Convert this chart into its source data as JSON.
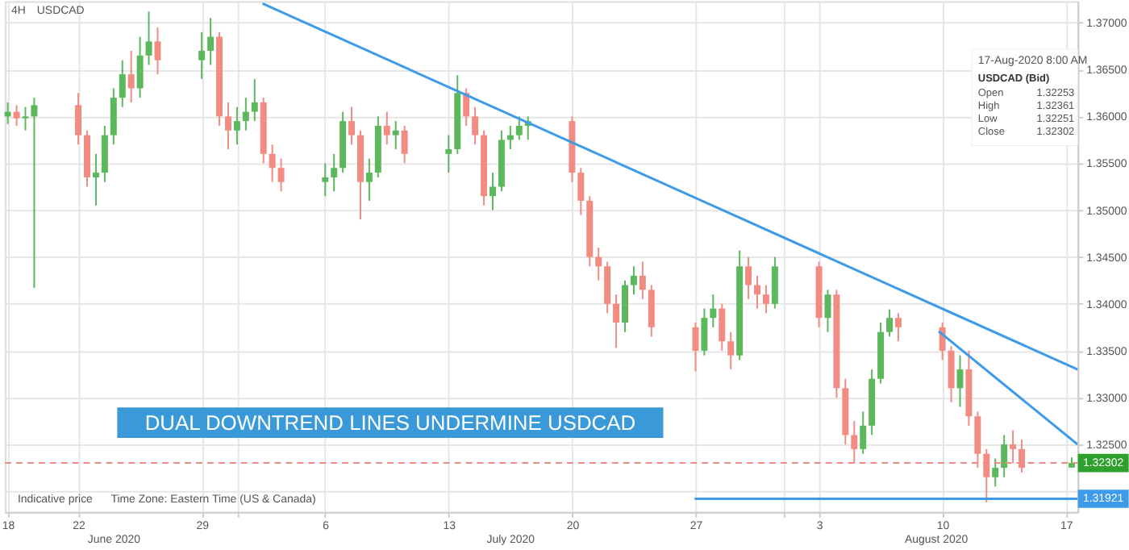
{
  "chart_data": {
    "type": "candlestick",
    "title": "USDCAD",
    "subtitle": "4H",
    "x": [
      "2020-06-18T00:00",
      "2020-06-18T12:00",
      "2020-06-19T00:00",
      "2020-06-19T12:00",
      "2020-06-22T00:00",
      "2020-06-22T12:00",
      "2020-06-23T00:00",
      "2020-06-23T12:00",
      "2020-06-24T00:00",
      "2020-06-24T12:00",
      "2020-06-25T00:00",
      "2020-06-25T12:00",
      "2020-06-26T00:00",
      "2020-06-26T12:00",
      "2020-06-29T00:00",
      "2020-06-29T12:00",
      "2020-06-30T00:00",
      "2020-06-30T12:00",
      "2020-07-01T00:00",
      "2020-07-01T12:00",
      "2020-07-02T00:00",
      "2020-07-02T12:00",
      "2020-07-03T00:00",
      "2020-07-03T12:00",
      "2020-07-06T00:00",
      "2020-07-06T12:00",
      "2020-07-07T00:00",
      "2020-07-07T12:00",
      "2020-07-08T00:00",
      "2020-07-08T12:00",
      "2020-07-09T00:00",
      "2020-07-09T12:00",
      "2020-07-10T00:00",
      "2020-07-10T12:00",
      "2020-07-13T00:00",
      "2020-07-13T12:00",
      "2020-07-14T00:00",
      "2020-07-14T12:00",
      "2020-07-15T00:00",
      "2020-07-15T12:00",
      "2020-07-16T00:00",
      "2020-07-16T12:00",
      "2020-07-17T00:00",
      "2020-07-17T12:00",
      "2020-07-20T00:00",
      "2020-07-20T12:00",
      "2020-07-21T00:00",
      "2020-07-21T12:00",
      "2020-07-22T00:00",
      "2020-07-22T12:00",
      "2020-07-23T00:00",
      "2020-07-23T12:00",
      "2020-07-24T00:00",
      "2020-07-24T12:00",
      "2020-07-27T00:00",
      "2020-07-27T12:00",
      "2020-07-28T00:00",
      "2020-07-28T12:00",
      "2020-07-29T00:00",
      "2020-07-29T12:00",
      "2020-07-30T00:00",
      "2020-07-30T12:00",
      "2020-07-31T00:00",
      "2020-07-31T12:00",
      "2020-08-03T00:00",
      "2020-08-03T12:00",
      "2020-08-04T00:00",
      "2020-08-04T12:00",
      "2020-08-05T00:00",
      "2020-08-05T12:00",
      "2020-08-06T00:00",
      "2020-08-06T12:00",
      "2020-08-07T00:00",
      "2020-08-07T12:00",
      "2020-08-10T00:00",
      "2020-08-10T12:00",
      "2020-08-11T00:00",
      "2020-08-11T12:00",
      "2020-08-12T00:00",
      "2020-08-12T12:00",
      "2020-08-13T00:00",
      "2020-08-13T12:00",
      "2020-08-14T00:00",
      "2020-08-14T12:00",
      "2020-08-17T08:00"
    ],
    "ohlc": [
      [
        1.36,
        1.3615,
        1.3592,
        1.3605
      ],
      [
        1.3605,
        1.3612,
        1.359,
        1.3598
      ],
      [
        1.3598,
        1.361,
        1.3585,
        1.36
      ],
      [
        1.36,
        1.362,
        1.3417,
        1.3612
      ],
      [
        1.3612,
        1.3625,
        1.357,
        1.358
      ],
      [
        1.358,
        1.3585,
        1.3525,
        1.3535
      ],
      [
        1.3535,
        1.356,
        1.3505,
        1.354
      ],
      [
        1.354,
        1.359,
        1.353,
        1.358
      ],
      [
        1.358,
        1.363,
        1.357,
        1.362
      ],
      [
        1.362,
        1.366,
        1.361,
        1.3645
      ],
      [
        1.3645,
        1.367,
        1.3615,
        1.363
      ],
      [
        1.363,
        1.3685,
        1.362,
        1.3665
      ],
      [
        1.3665,
        1.3712,
        1.3655,
        1.368
      ],
      [
        1.368,
        1.3695,
        1.3645,
        1.366
      ],
      [
        1.366,
        1.369,
        1.364,
        1.367
      ],
      [
        1.367,
        1.3705,
        1.3655,
        1.3685
      ],
      [
        1.3685,
        1.369,
        1.359,
        1.36
      ],
      [
        1.36,
        1.3615,
        1.3565,
        1.3585
      ],
      [
        1.3585,
        1.361,
        1.357,
        1.3595
      ],
      [
        1.3595,
        1.362,
        1.3585,
        1.3605
      ],
      [
        1.3605,
        1.364,
        1.3595,
        1.3615
      ],
      [
        1.3615,
        1.362,
        1.355,
        1.356
      ],
      [
        1.356,
        1.357,
        1.353,
        1.3545
      ],
      [
        1.3545,
        1.3555,
        1.352,
        1.353
      ],
      [
        1.353,
        1.355,
        1.3515,
        1.3535
      ],
      [
        1.3535,
        1.356,
        1.352,
        1.3545
      ],
      [
        1.3545,
        1.3605,
        1.354,
        1.3595
      ],
      [
        1.3595,
        1.361,
        1.357,
        1.358
      ],
      [
        1.358,
        1.3585,
        1.349,
        1.353
      ],
      [
        1.353,
        1.3555,
        1.351,
        1.354
      ],
      [
        1.354,
        1.36,
        1.3535,
        1.359
      ],
      [
        1.359,
        1.3605,
        1.357,
        1.358
      ],
      [
        1.358,
        1.3595,
        1.3565,
        1.3585
      ],
      [
        1.3585,
        1.359,
        1.355,
        1.356
      ],
      [
        1.356,
        1.358,
        1.354,
        1.3565
      ],
      [
        1.3565,
        1.3644,
        1.356,
        1.3625
      ],
      [
        1.3625,
        1.363,
        1.359,
        1.36
      ],
      [
        1.36,
        1.361,
        1.357,
        1.358
      ],
      [
        1.358,
        1.3585,
        1.3505,
        1.3515
      ],
      [
        1.3515,
        1.354,
        1.35,
        1.3525
      ],
      [
        1.3525,
        1.3585,
        1.352,
        1.3575
      ],
      [
        1.3575,
        1.359,
        1.3565,
        1.358
      ],
      [
        1.358,
        1.36,
        1.3575,
        1.359
      ],
      [
        1.359,
        1.36,
        1.3575,
        1.3595
      ],
      [
        1.3595,
        1.36,
        1.353,
        1.354
      ],
      [
        1.354,
        1.3545,
        1.3495,
        1.351
      ],
      [
        1.351,
        1.3515,
        1.344,
        1.345
      ],
      [
        1.345,
        1.346,
        1.3425,
        1.344
      ],
      [
        1.344,
        1.3445,
        1.339,
        1.34
      ],
      [
        1.34,
        1.341,
        1.3353,
        1.338
      ],
      [
        1.338,
        1.3425,
        1.337,
        1.342
      ],
      [
        1.342,
        1.344,
        1.341,
        1.343
      ],
      [
        1.343,
        1.3445,
        1.3405,
        1.3415
      ],
      [
        1.3415,
        1.342,
        1.3365,
        1.3375
      ],
      [
        1.3375,
        1.338,
        1.3328,
        1.335
      ],
      [
        1.335,
        1.3395,
        1.3345,
        1.3385
      ],
      [
        1.3385,
        1.341,
        1.3375,
        1.3395
      ],
      [
        1.3395,
        1.34,
        1.335,
        1.336
      ],
      [
        1.336,
        1.337,
        1.333,
        1.3345
      ],
      [
        1.3345,
        1.3457,
        1.334,
        1.344
      ],
      [
        1.344,
        1.345,
        1.3405,
        1.342
      ],
      [
        1.342,
        1.343,
        1.3395,
        1.341
      ],
      [
        1.341,
        1.342,
        1.339,
        1.34
      ],
      [
        1.34,
        1.345,
        1.3395,
        1.344
      ],
      [
        1.344,
        1.3445,
        1.3375,
        1.3385
      ],
      [
        1.3385,
        1.3415,
        1.337,
        1.341
      ],
      [
        1.341,
        1.3415,
        1.33,
        1.331
      ],
      [
        1.331,
        1.332,
        1.325,
        1.326
      ],
      [
        1.326,
        1.3275,
        1.323,
        1.3245
      ],
      [
        1.3245,
        1.3285,
        1.324,
        1.327
      ],
      [
        1.327,
        1.333,
        1.326,
        1.332
      ],
      [
        1.332,
        1.338,
        1.3315,
        1.337
      ],
      [
        1.337,
        1.3394,
        1.3365,
        1.3385
      ],
      [
        1.3385,
        1.339,
        1.336,
        1.3375
      ],
      [
        1.3375,
        1.338,
        1.334,
        1.335
      ],
      [
        1.335,
        1.3355,
        1.3295,
        1.331
      ],
      [
        1.331,
        1.3345,
        1.329,
        1.333
      ],
      [
        1.333,
        1.335,
        1.327,
        1.328
      ],
      [
        1.328,
        1.3285,
        1.3225,
        1.324
      ],
      [
        1.324,
        1.3245,
        1.3188,
        1.3215
      ],
      [
        1.3215,
        1.3235,
        1.3205,
        1.3225
      ],
      [
        1.3225,
        1.326,
        1.3215,
        1.325
      ],
      [
        1.325,
        1.3265,
        1.323,
        1.3245
      ],
      [
        1.3245,
        1.3255,
        1.322,
        1.3225
      ],
      [
        1.32253,
        1.32361,
        1.32251,
        1.32302
      ]
    ],
    "colors": [
      "#5cb85c",
      "#f28b82",
      "#5cb85c",
      "#5cb85c",
      "#f28b82",
      "#f28b82",
      "#5cb85c",
      "#5cb85c",
      "#5cb85c",
      "#5cb85c",
      "#f28b82",
      "#5cb85c",
      "#5cb85c",
      "#f28b82",
      "#5cb85c",
      "#5cb85c",
      "#f28b82",
      "#f28b82",
      "#5cb85c",
      "#5cb85c",
      "#5cb85c",
      "#f28b82",
      "#f28b82",
      "#f28b82",
      "#5cb85c",
      "#5cb85c",
      "#5cb85c",
      "#f28b82",
      "#f28b82",
      "#5cb85c",
      "#5cb85c",
      "#f28b82",
      "#5cb85c",
      "#f28b82",
      "#5cb85c",
      "#5cb85c",
      "#f28b82",
      "#f28b82",
      "#f28b82",
      "#5cb85c",
      "#5cb85c",
      "#5cb85c",
      "#5cb85c",
      "#5cb85c",
      "#f28b82",
      "#f28b82",
      "#f28b82",
      "#f28b82",
      "#f28b82",
      "#f28b82",
      "#5cb85c",
      "#5cb85c",
      "#f28b82",
      "#f28b82",
      "#f28b82",
      "#5cb85c",
      "#5cb85c",
      "#f28b82",
      "#f28b82",
      "#5cb85c",
      "#f28b82",
      "#f28b82",
      "#f28b82",
      "#5cb85c",
      "#f28b82",
      "#5cb85c",
      "#f28b82",
      "#f28b82",
      "#f28b82",
      "#5cb85c",
      "#5cb85c",
      "#5cb85c",
      "#5cb85c",
      "#f28b82",
      "#f28b82",
      "#f28b82",
      "#5cb85c",
      "#f28b82",
      "#f28b82",
      "#f28b82",
      "#5cb85c",
      "#5cb85c",
      "#f28b82",
      "#f28b82",
      "#5cb85c"
    ],
    "series": [
      {
        "type": "line",
        "color": "#3d9be9",
        "x": [
          "2020-07-02T12:00",
          "2020-08-17T16:00"
        ],
        "values": [
          1.372,
          1.333
        ]
      },
      {
        "type": "line",
        "color": "#3d9be9",
        "x": [
          "2020-08-09T20:00",
          "2020-08-17T16:00"
        ],
        "values": [
          1.337,
          1.325
        ]
      },
      {
        "type": "line",
        "color": "#3d9be9",
        "x": [
          "2020-07-27T00:00",
          "2020-08-17T16:00"
        ],
        "values": [
          1.3192,
          1.3192
        ]
      }
    ],
    "ref_lines": [
      {
        "axis": "y",
        "value": 1.32302,
        "label": "1.32302",
        "color": "#f28b82",
        "line_style": "dashed"
      }
    ],
    "xlim": [
      "2020-06-17T20:00",
      "2020-08-17T16:00"
    ],
    "xticks": [
      {
        "value": "2020-06-18",
        "label": "18"
      },
      {
        "value": "2020-06-22",
        "label": "22"
      },
      {
        "value": "2020-06-29",
        "label": "29"
      },
      {
        "value": "2020-07-01",
        "label": null
      },
      {
        "value": "2020-07-06",
        "label": "6"
      },
      {
        "value": "2020-07-13",
        "label": "13"
      },
      {
        "value": "2020-07-20",
        "label": "20"
      },
      {
        "value": "2020-07-27",
        "label": "27"
      },
      {
        "value": "2020-08-01",
        "label": null
      },
      {
        "value": "2020-08-03",
        "label": "3"
      },
      {
        "value": "2020-08-10",
        "label": "10"
      },
      {
        "value": "2020-08-17",
        "label": "17"
      }
    ],
    "ylim": [
      1.3178,
      1.3723
    ],
    "yticks": [
      {
        "value": 1.32,
        "label": null
      },
      {
        "value": 1.325,
        "label": "1.32500"
      },
      {
        "value": 1.33,
        "label": "1.33000"
      },
      {
        "value": 1.335,
        "label": "1.33500"
      },
      {
        "value": 1.34,
        "label": "1.34000"
      },
      {
        "value": 1.345,
        "label": "1.34500"
      },
      {
        "value": 1.35,
        "label": "1.35000"
      },
      {
        "value": 1.355,
        "label": "1.35500"
      },
      {
        "value": 1.36,
        "label": "1.36000"
      },
      {
        "value": 1.365,
        "label": "1.36500"
      },
      {
        "value": 1.37,
        "label": "1.37000"
      }
    ],
    "grid": true,
    "annotations": [
      "DUAL DOWNTREND LINES UNDERMINE USDCAD",
      "Indicative price",
      "Time Zone: Eastern Time (US & Canada)",
      "17-Aug-2020 8:00 AM",
      "USDCAD (Bid)",
      "Open",
      "1.32253",
      "High",
      "1.32361",
      "Low",
      "1.32251",
      "Close",
      "1.32302",
      "June 2020",
      "July 2020",
      "August 2020",
      {
        "text": "1.31921",
        "y": 1.3192
      }
    ]
  }
}
